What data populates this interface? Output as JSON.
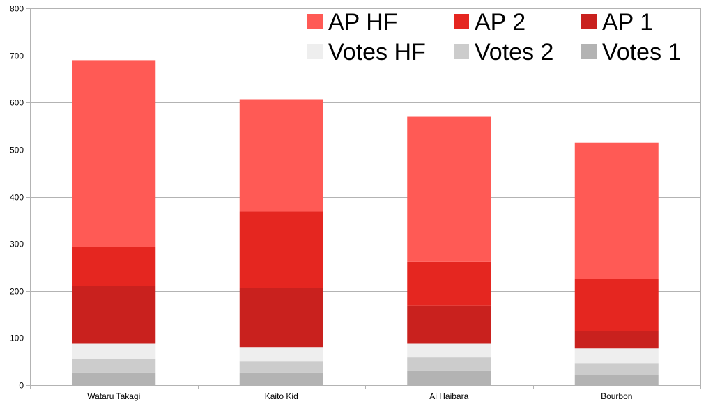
{
  "chart_data": {
    "type": "bar",
    "stacked": true,
    "categories": [
      "Wataru Takagi",
      "Kaito Kid",
      "Ai Haibara",
      "Bourbon"
    ],
    "series": [
      {
        "name": "Votes 1",
        "color": "#b3b3b3",
        "values": [
          27,
          27,
          30,
          21
        ]
      },
      {
        "name": "Votes 2",
        "color": "#cccccc",
        "values": [
          28,
          23,
          29,
          26
        ]
      },
      {
        "name": "Votes HF",
        "color": "#eeeeee",
        "values": [
          33,
          31,
          29,
          31
        ]
      },
      {
        "name": "AP 1",
        "color": "#c9211e",
        "values": [
          122,
          125,
          81,
          37
        ]
      },
      {
        "name": "AP 2",
        "color": "#e52620",
        "values": [
          83,
          163,
          93,
          110
        ]
      },
      {
        "name": "AP HF",
        "color": "#ff5a55",
        "values": [
          397,
          238,
          308,
          290
        ]
      }
    ],
    "ylim": [
      0,
      800
    ],
    "yticks": [
      "0",
      "100",
      "200",
      "300",
      "400",
      "500",
      "600",
      "700",
      "800"
    ],
    "grid": true,
    "legend_position": "top-right",
    "legend_order": [
      "AP HF",
      "AP 2",
      "AP 1",
      "Votes HF",
      "Votes 2",
      "Votes 1"
    ]
  }
}
